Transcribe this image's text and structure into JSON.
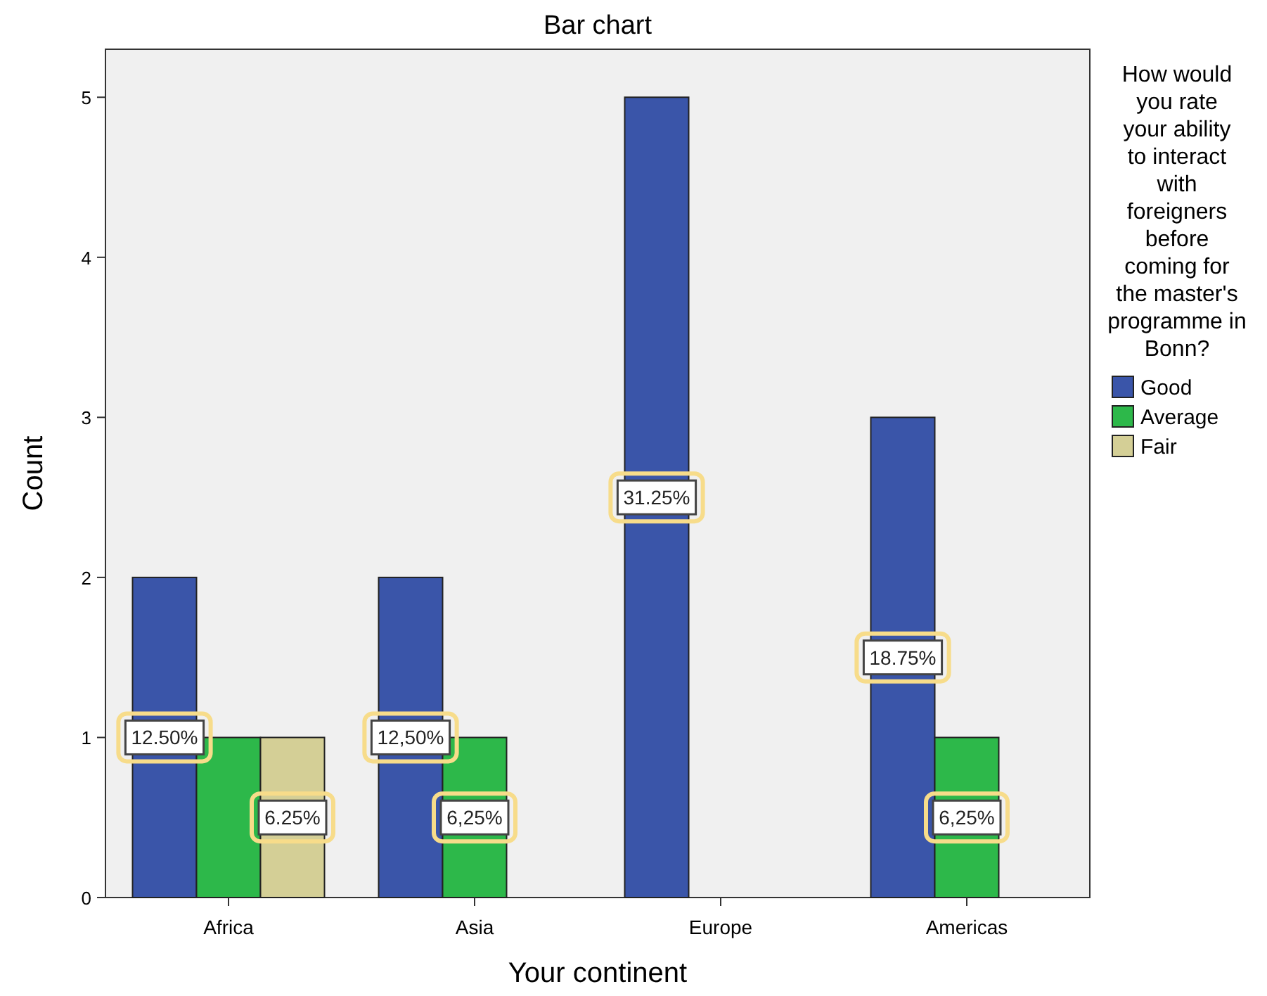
{
  "chart_data": {
    "type": "bar",
    "title": "Bar chart",
    "xlabel": "Your continent",
    "ylabel": "Count",
    "legend_title": "How would you rate your ability to interact with foreigners before coming for the master's programme in Bonn?",
    "categories": [
      "Africa",
      "Asia",
      "Europe",
      "Americas"
    ],
    "series": [
      {
        "name": "Good",
        "color": "#3a55a9",
        "values": [
          2,
          2,
          5,
          3
        ]
      },
      {
        "name": "Average",
        "color": "#2db84a",
        "values": [
          1,
          1,
          null,
          1
        ]
      },
      {
        "name": "Fair",
        "color": "#d4cf96",
        "values": [
          1,
          null,
          null,
          null
        ]
      }
    ],
    "annotations": [
      "12.50%",
      "6.25%",
      "12,50%",
      "6,25%",
      "31.25%",
      "18.75%",
      "6,25%"
    ],
    "ylim": [
      0,
      5.3
    ],
    "yticks": [
      0,
      1,
      2,
      3,
      4,
      5
    ],
    "grid": false,
    "legend": "top right"
  }
}
